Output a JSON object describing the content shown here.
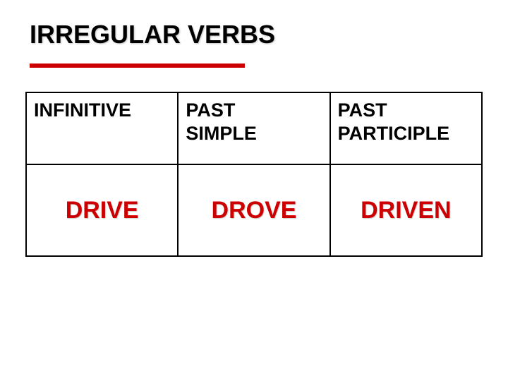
{
  "title": "IRREGULAR VERBS",
  "rule_color": "#cc0000",
  "table": {
    "columns": [
      "INFINITIVE",
      "PAST SIMPLE",
      "PAST PARTICIPLE"
    ],
    "rows": [
      [
        "DRIVE",
        "DROVE",
        "DRIVEN"
      ]
    ],
    "header_color": "#000000",
    "data_color": "#cc0000",
    "border_color": "#000000",
    "header_fontsize": 27,
    "data_fontsize": 34
  }
}
